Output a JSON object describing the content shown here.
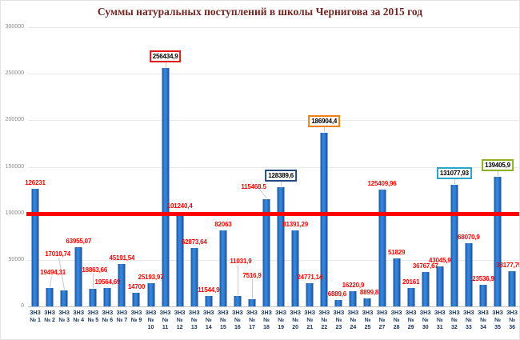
{
  "colors": {
    "bar": "#2E75B6",
    "value_label": "#FF0000",
    "reference_line": "#FF0000",
    "axis_label": "#17365D",
    "title": "#722623",
    "highlight_red": "#E1161A",
    "highlight_navy": "#24477D",
    "highlight_orange": "#F07F14",
    "highlight_cyan": "#2BA6CB",
    "highlight_green": "#8CB01F"
  },
  "chart_data": {
    "type": "bar",
    "title": "Суммы натуральных поступлений в школы Чернигова за 2015 год",
    "xlabel": "",
    "ylabel": "",
    "ylim": [
      0,
      300000
    ],
    "yticks": [
      0,
      50000,
      100000,
      150000,
      200000,
      250000,
      300000
    ],
    "grid": true,
    "legend": "none",
    "reference_line": {
      "value": 100000,
      "color": "#FF0000"
    },
    "bar_color": "#2E75B6",
    "bars": [
      {
        "cat": "ЗНЗ №1",
        "l1": "ЗНЗ",
        "l2": "№ 1",
        "l3": "",
        "value": 126231,
        "label": "126231",
        "box": null,
        "extra": 0,
        "shift": 0,
        "leader": null
      },
      {
        "cat": "ЗНЗ №2",
        "l1": "ЗНЗ",
        "l2": "№ 2",
        "l3": "",
        "value": 19494.31,
        "label": "19494,31",
        "box": null,
        "extra": 12,
        "shift": 4,
        "leader": {
          "h": 12,
          "angle": 8
        }
      },
      {
        "cat": "ЗНЗ №3",
        "l1": "ЗНЗ",
        "l2": "№ 3",
        "l3": "",
        "value": 17010.74,
        "label": "17010,74",
        "box": null,
        "extra": 38,
        "shift": -8,
        "leader": {
          "h": 38,
          "angle": -10
        }
      },
      {
        "cat": "ЗНЗ №4",
        "l1": "ЗНЗ",
        "l2": "№ 4",
        "l3": "",
        "value": 63955.07,
        "label": "63955,07",
        "box": null,
        "extra": 0,
        "shift": 0,
        "leader": null
      },
      {
        "cat": "ЗНЗ №5",
        "l1": "ЗНЗ",
        "l2": "№ 5",
        "l3": "",
        "value": 18863.66,
        "label": "18863,66",
        "box": null,
        "extra": 16,
        "shift": 2,
        "leader": {
          "h": 16,
          "angle": 0
        }
      },
      {
        "cat": "ЗНЗ №6",
        "l1": "ЗНЗ",
        "l2": "№ 6",
        "l3": "",
        "value": 19564.69,
        "label": "19564,69",
        "box": null,
        "extra": 0,
        "shift": 0,
        "leader": null
      },
      {
        "cat": "ЗНЗ №7",
        "l1": "ЗНЗ",
        "l2": "№ 7",
        "l3": "",
        "value": 45191.54,
        "label": "45191,54",
        "box": null,
        "extra": 0,
        "shift": 0,
        "leader": null
      },
      {
        "cat": "ЗНЗ №9",
        "l1": "ЗНЗ",
        "l2": "№ 9",
        "l3": "",
        "value": 14700,
        "label": "14700",
        "box": null,
        "extra": 0,
        "shift": 0,
        "leader": null
      },
      {
        "cat": "ЗНЗ №10",
        "l1": "ЗНЗ",
        "l2": "№",
        "l3": "10",
        "value": 25193.97,
        "label": "25193,97",
        "box": null,
        "extra": 0,
        "shift": 0,
        "leader": null
      },
      {
        "cat": "ЗНЗ №11",
        "l1": "ЗНЗ",
        "l2": "№",
        "l3": "11",
        "value": 256434.9,
        "label": "256434,9",
        "box": "#E1161A",
        "extra": 0,
        "shift": 0,
        "leader": {
          "h": 5,
          "angle": 0
        }
      },
      {
        "cat": "ЗНЗ №12",
        "l1": "ЗНЗ",
        "l2": "№",
        "l3": "12",
        "value": 101240.4,
        "label": "101240,4",
        "box": null,
        "extra": 0,
        "shift": 0,
        "leader": null
      },
      {
        "cat": "ЗНЗ №13",
        "l1": "ЗНЗ",
        "l2": "№",
        "l3": "13",
        "value": 62873.64,
        "label": "62873,64",
        "box": null,
        "extra": 0,
        "shift": 0,
        "leader": null
      },
      {
        "cat": "ЗНЗ №14",
        "l1": "ЗНЗ",
        "l2": "№",
        "l3": "14",
        "value": 11544.9,
        "label": "11544,9",
        "box": null,
        "extra": 0,
        "shift": 0,
        "leader": null
      },
      {
        "cat": "ЗНЗ №15",
        "l1": "ЗНЗ",
        "l2": "№",
        "l3": "15",
        "value": 82063,
        "label": "82063",
        "box": null,
        "extra": 0,
        "shift": 0,
        "leader": null
      },
      {
        "cat": "ЗНЗ №16",
        "l1": "ЗНЗ",
        "l2": "№",
        "l3": "16",
        "value": 11031.9,
        "label": "11031,9",
        "box": null,
        "extra": 36,
        "shift": 4,
        "leader": {
          "h": 36,
          "angle": 0
        }
      },
      {
        "cat": "ЗНЗ №17",
        "l1": "ЗНЗ",
        "l2": "№",
        "l3": "17",
        "value": 7516.9,
        "label": "7516,9",
        "box": null,
        "extra": 22,
        "shift": 0,
        "leader": {
          "h": 22,
          "angle": 0
        }
      },
      {
        "cat": "ЗНЗ №18",
        "l1": "ЗНЗ",
        "l2": "№",
        "l3": "18",
        "value": 115468.5,
        "label": "115468.5",
        "box": null,
        "extra": 8,
        "shift": -16,
        "leader": {
          "h": 14,
          "angle": -38
        }
      },
      {
        "cat": "ЗНЗ №19",
        "l1": "ЗНЗ",
        "l2": "№",
        "l3": "19",
        "value": 128389.6,
        "label": "128389,6",
        "box": "#24477D",
        "extra": 0,
        "shift": 0,
        "leader": {
          "h": 5,
          "angle": 0
        }
      },
      {
        "cat": "ЗНЗ №20",
        "l1": "ЗНЗ",
        "l2": "№",
        "l3": "20",
        "value": 81391.29,
        "label": "81391,29",
        "box": null,
        "extra": 0,
        "shift": 0,
        "leader": null
      },
      {
        "cat": "ЗНЗ №21",
        "l1": "ЗНЗ",
        "l2": "№",
        "l3": "21",
        "value": 24771.14,
        "label": "24771,14",
        "box": null,
        "extra": 0,
        "shift": 0,
        "leader": null
      },
      {
        "cat": "ЗНЗ №22",
        "l1": "ЗНЗ",
        "l2": "№",
        "l3": "22",
        "value": 186904.4,
        "label": "186904,4",
        "box": "#F07F14",
        "extra": 0,
        "shift": 0,
        "leader": {
          "h": 5,
          "angle": 0
        }
      },
      {
        "cat": "ЗНЗ №23",
        "l1": "ЗНЗ",
        "l2": "№",
        "l3": "23",
        "value": 6889.6,
        "label": "6889,6",
        "box": null,
        "extra": 0,
        "shift": -2,
        "leader": null
      },
      {
        "cat": "ЗНЗ №24",
        "l1": "ЗНЗ",
        "l2": "№",
        "l3": "24",
        "value": 16220.9,
        "label": "16220,9",
        "box": null,
        "extra": 0,
        "shift": 0,
        "leader": null
      },
      {
        "cat": "ЗНЗ №25",
        "l1": "ЗНЗ",
        "l2": "№",
        "l3": "25",
        "value": 8899.8,
        "label": "8899,8",
        "box": null,
        "extra": 0,
        "shift": 2,
        "leader": null
      },
      {
        "cat": "ЗНЗ №27",
        "l1": "ЗНЗ",
        "l2": "№",
        "l3": "27",
        "value": 125409.96,
        "label": "125409,96",
        "box": null,
        "extra": 0,
        "shift": 0,
        "leader": null
      },
      {
        "cat": "ЗНЗ №28",
        "l1": "ЗНЗ",
        "l2": "№",
        "l3": "28",
        "value": 51829,
        "label": "51829",
        "box": null,
        "extra": 0,
        "shift": 0,
        "leader": null
      },
      {
        "cat": "ЗНЗ №29",
        "l1": "ЗНЗ",
        "l2": "№",
        "l3": "29",
        "value": 20161,
        "label": "20161",
        "box": null,
        "extra": 0,
        "shift": 0,
        "leader": null
      },
      {
        "cat": "ЗНЗ №30",
        "l1": "ЗНЗ",
        "l2": "№",
        "l3": "30",
        "value": 36767.67,
        "label": "36767,67",
        "box": null,
        "extra": 0,
        "shift": 0,
        "leader": null
      },
      {
        "cat": "ЗНЗ №31",
        "l1": "ЗНЗ",
        "l2": "№",
        "l3": "31",
        "value": 43045.9,
        "label": "43045,9",
        "box": null,
        "extra": 0,
        "shift": 0,
        "leader": null
      },
      {
        "cat": "ЗНЗ №32",
        "l1": "ЗНЗ",
        "l2": "№",
        "l3": "32",
        "value": 131077.93,
        "label": "131077,93",
        "box": "#2BA6CB",
        "extra": 0,
        "shift": 0,
        "leader": {
          "h": 5,
          "angle": 0
        }
      },
      {
        "cat": "ЗНЗ №33",
        "l1": "ЗНЗ",
        "l2": "№",
        "l3": "33",
        "value": 68070.9,
        "label": "68070,9",
        "box": null,
        "extra": 0,
        "shift": 0,
        "leader": null
      },
      {
        "cat": "ЗНЗ №34",
        "l1": "ЗНЗ",
        "l2": "№",
        "l3": "34",
        "value": 23536.9,
        "label": "23536,9",
        "box": null,
        "extra": 0,
        "shift": 0,
        "leader": null
      },
      {
        "cat": "ЗНЗ №35",
        "l1": "ЗНЗ",
        "l2": "№",
        "l3": "35",
        "value": 139405.9,
        "label": "139405,9",
        "box": "#8CB01F",
        "extra": 0,
        "shift": 0,
        "leader": {
          "h": 5,
          "angle": 0
        }
      },
      {
        "cat": "ЗНЗ №36",
        "l1": "ЗНЗ",
        "l2": "№",
        "l3": "36",
        "value": 38177.75,
        "label": "38177,75",
        "box": null,
        "extra": 0,
        "shift": -4,
        "leader": null
      }
    ]
  }
}
